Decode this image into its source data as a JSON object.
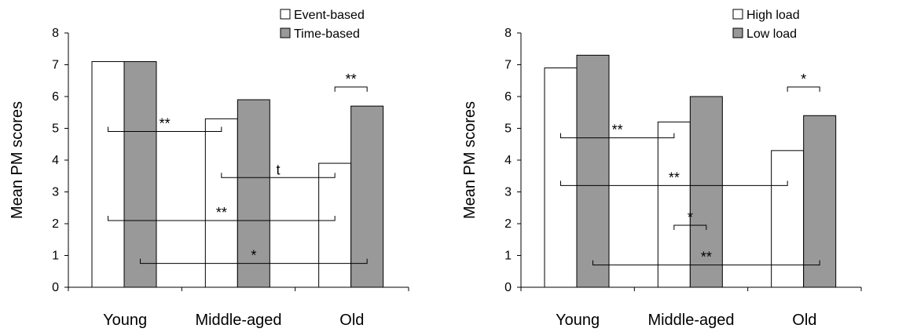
{
  "chart_data": [
    {
      "type": "bar",
      "categories": [
        "Young",
        "Middle-aged",
        "Old"
      ],
      "ylabel": "Mean PM scores",
      "xlabel": "",
      "ylim": [
        0,
        8
      ],
      "yticks": [
        "0",
        "1",
        "2",
        "3",
        "4",
        "5",
        "6",
        "7",
        "8"
      ],
      "series": [
        {
          "name": "Event-based",
          "values": [
            7.1,
            5.3,
            3.9
          ],
          "color": "#ffffff"
        },
        {
          "name": "Time-based",
          "values": [
            7.1,
            5.9,
            5.7
          ],
          "color": "#999999"
        }
      ],
      "legend_position": "top-right",
      "significance": [
        {
          "label": "**",
          "from": {
            "cat": 0,
            "series": 0
          },
          "to": {
            "cat": 1,
            "series": 0
          },
          "level": 4.9
        },
        {
          "label": "t",
          "from": {
            "cat": 1,
            "series": 0
          },
          "to": {
            "cat": 2,
            "series": 0
          },
          "level": 3.45
        },
        {
          "label": "**",
          "from": {
            "cat": 0,
            "series": 0
          },
          "to": {
            "cat": 2,
            "series": 0
          },
          "level": 2.1
        },
        {
          "label": "*",
          "from": {
            "cat": 0,
            "series": 1
          },
          "to": {
            "cat": 2,
            "series": 1
          },
          "level": 0.75
        },
        {
          "label": "**",
          "from": {
            "cat": 2,
            "series": 0
          },
          "to": {
            "cat": 2,
            "series": 1
          },
          "level": 6.3
        }
      ]
    },
    {
      "type": "bar",
      "categories": [
        "Young",
        "Middle-aged",
        "Old"
      ],
      "ylabel": "Mean PM scores",
      "xlabel": "",
      "ylim": [
        0,
        8
      ],
      "yticks": [
        "0",
        "1",
        "2",
        "3",
        "4",
        "5",
        "6",
        "7",
        "8"
      ],
      "series": [
        {
          "name": "High load",
          "values": [
            6.9,
            5.2,
            4.3
          ],
          "color": "#ffffff"
        },
        {
          "name": "Low load",
          "values": [
            7.3,
            6.0,
            5.4
          ],
          "color": "#999999"
        }
      ],
      "legend_position": "top-right",
      "significance": [
        {
          "label": "**",
          "from": {
            "cat": 0,
            "series": 0
          },
          "to": {
            "cat": 1,
            "series": 0
          },
          "level": 4.7
        },
        {
          "label": "**",
          "from": {
            "cat": 0,
            "series": 0
          },
          "to": {
            "cat": 2,
            "series": 0
          },
          "level": 3.2
        },
        {
          "label": "*",
          "from": {
            "cat": 1,
            "series": 0
          },
          "to": {
            "cat": 1,
            "series": 1
          },
          "level": 1.95
        },
        {
          "label": "**",
          "from": {
            "cat": 0,
            "series": 1
          },
          "to": {
            "cat": 2,
            "series": 1
          },
          "level": 0.7
        },
        {
          "label": "*",
          "from": {
            "cat": 2,
            "series": 0
          },
          "to": {
            "cat": 2,
            "series": 1
          },
          "level": 6.3
        }
      ]
    }
  ]
}
